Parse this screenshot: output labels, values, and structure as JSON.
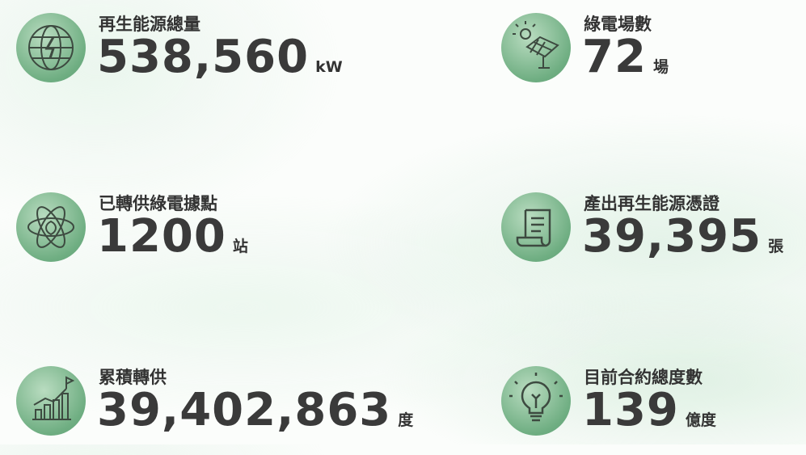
{
  "stats": [
    {
      "label": "再生能源總量",
      "value": "538,560",
      "unit": "kW"
    },
    {
      "label": "綠電場數",
      "value": "72",
      "unit": "場"
    },
    {
      "label": "已轉供綠電據點",
      "value": "1200",
      "unit": "站"
    },
    {
      "label": "產出再生能源憑證",
      "value": "39,395",
      "unit": "張"
    },
    {
      "label": "累積轉供",
      "value": "39,402,863",
      "unit": "度"
    },
    {
      "label": "目前合約總度數",
      "value": "139",
      "unit": "億度"
    }
  ]
}
